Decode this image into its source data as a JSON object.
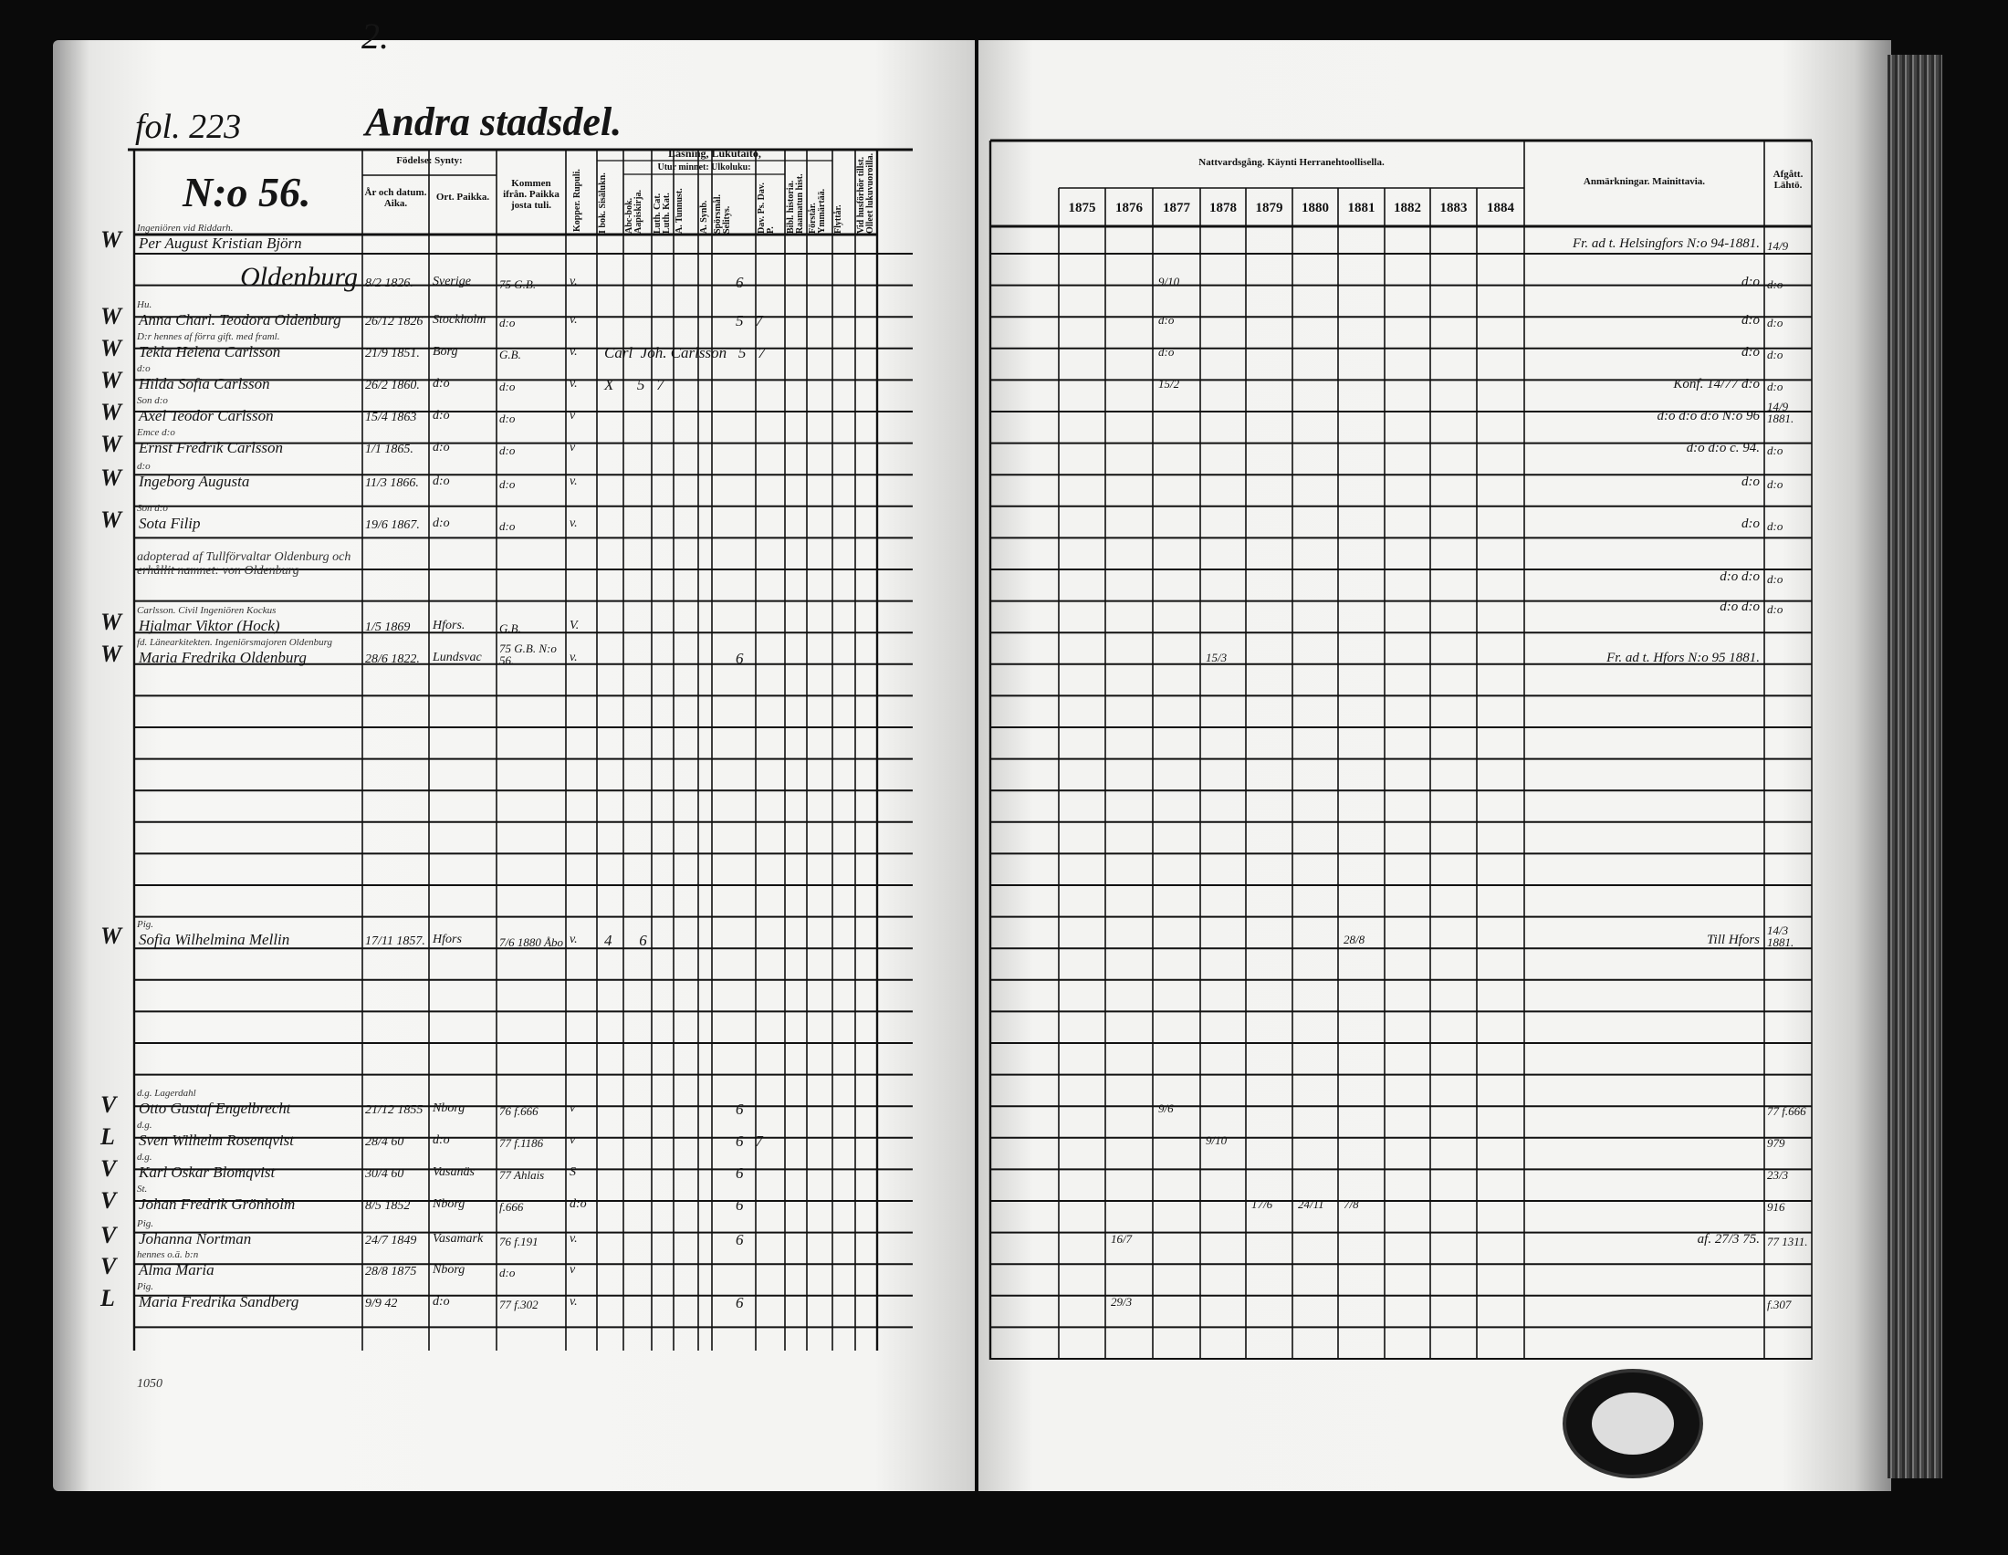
{
  "left_page": {
    "page_number": "2.",
    "folio": "fol. 223",
    "district": "Andra stadsdel.",
    "house_number": "N:o 56.",
    "footer_note": "1050",
    "headers": {
      "birth": "Födelse: Synty:",
      "year_date": "År och datum. Aika.",
      "place": "Ort. Paikka.",
      "came_from": "Kommen ifrån. Paikka josta tuli.",
      "smallpox": "Kopper. Rupuli.",
      "reading": "Läsning, Lukutaito,",
      "by_heart": "Utur minnet: Ulkoluku:",
      "vertical": [
        "I bok. Sisälukn.",
        "Abc-bok. Aapiskirja.",
        "Luth. Cat. Luth. Kat.",
        "A. Tunnust.",
        "A. Synb.",
        "Spörsmål. Selitys.",
        "Dav. Ps. Dav. P.",
        "Bibl. historia. Raamatun hist.",
        "Förstår. Ymmärtää.",
        "Flyttår.",
        "Vid husförhör tillst. Olleet lukuvuoroilla."
      ]
    },
    "entries": [
      {
        "note": "Ingeniören vid Riddarh.",
        "name": "Per August Kristian Björn",
        "date": "",
        "place": "",
        "from": "",
        "mark": "",
        "extra": "",
        "check": "W"
      },
      {
        "note": "",
        "name": "Oldenburg",
        "date": "8/2 1826.",
        "place": "Sverige",
        "from": "75 G.B.",
        "mark": "v.",
        "extra": "6",
        "check": ""
      },
      {
        "note": "Hu.",
        "name": "Anna Charl. Teodora Oldenburg",
        "date": "26/12 1826",
        "place": "Stockholm",
        "from": "d:o",
        "mark": "v.",
        "extra": "5   7",
        "check": "W"
      },
      {
        "note": "D:r hennes af förra gift. med framl.",
        "name": "Tekla Helena Carlsson",
        "date": "21/9 1851.",
        "place": "Borg",
        "from": "G.B.",
        "mark": "v.",
        "extra": "Carl  Joh. Carlsson   5   7",
        "check": "W"
      },
      {
        "note": "d:o",
        "name": "Hilda Sofia Carlsson",
        "date": "26/2 1860.",
        "place": "d:o",
        "from": "d:o",
        "mark": "v.",
        "extra": "X      5   7",
        "check": "W"
      },
      {
        "note": "Son d:o",
        "name": "Axel Teodor Carlsson",
        "date": "15/4 1863",
        "place": "d:o",
        "from": "d:o",
        "mark": "v",
        "extra": "",
        "check": "W"
      },
      {
        "note": "Emce d:o",
        "name": "Ernst Fredrik Carlsson",
        "date": "1/1 1865.",
        "place": "d:o",
        "from": "d:o",
        "mark": "v",
        "extra": "",
        "check": "W"
      },
      {
        "note": "d:o",
        "name": "Ingeborg Augusta",
        "date": "11/3 1866.",
        "place": "d:o",
        "from": "d:o",
        "mark": "v.",
        "extra": "",
        "check": "W"
      },
      {
        "note": "Son d:o",
        "name": "Sota Filip",
        "date": "19/6 1867.",
        "place": "d:o",
        "from": "d:o",
        "mark": "v.",
        "extra": "",
        "check": "W"
      },
      {
        "note": "adopterad af Tullförvaltar Oldenburg och erhållit namnet: von Oldenburg",
        "name": "",
        "date": "",
        "place": "",
        "from": "",
        "mark": "",
        "extra": "",
        "check": ""
      },
      {
        "note": "Carlsson. Civil Ingeniören  Kockus",
        "name": "Hjalmar Viktor (Hock)",
        "date": "1/5 1869",
        "place": "Hfors.",
        "from": "G.B.",
        "mark": "V.",
        "extra": "",
        "check": "W"
      },
      {
        "note": "fd. Länearkitekten. Ingeniörsmajoren Oldenburg",
        "name": "Maria Fredrika Oldenburg",
        "date": "28/6 1822.",
        "place": "Lundsvac",
        "from": "75 G.B. N:o 56.",
        "mark": "v.",
        "extra": "6",
        "check": "W"
      },
      {
        "note": "Pig.",
        "name": "Sofia Wilhelmina Mellin",
        "date": "17/11 1857.",
        "place": "Hfors",
        "from": "7/6 1880 Åbo",
        "mark": "v.",
        "extra": "4       6",
        "check": "W"
      },
      {
        "note": "d.g.   Lagerdahl",
        "name": "Otto Gustaf Engelbrecht",
        "date": "21/12 1855",
        "place": "Nborg",
        "from": "76 f.666",
        "mark": "v",
        "extra": "6",
        "check": "V"
      },
      {
        "note": "d.g.",
        "name": "Sven Wilhelm Rosenqvist",
        "date": "28/4 60",
        "place": "d:o",
        "from": "77 f.1186",
        "mark": "v",
        "extra": "6   7",
        "check": "L"
      },
      {
        "note": "d.g.",
        "name": "Karl Oskar Blomqvist",
        "date": "30/4 60",
        "place": "Vasanäs",
        "from": "77 Ahlais",
        "mark": "S",
        "extra": "6",
        "check": "V"
      },
      {
        "note": "St.",
        "name": "Johan Fredrik Grönholm",
        "date": "8/5 1852",
        "place": "Nborg",
        "from": "f.666",
        "mark": "d:o",
        "extra": "6",
        "check": "V"
      },
      {
        "note": "Pig.",
        "name": "Johanna Nortman",
        "date": "24/7 1849",
        "place": "Vasamark",
        "from": "76 f.191",
        "mark": "v.",
        "extra": "6",
        "check": "V"
      },
      {
        "note": "hennes o.ä. b:n",
        "name": "Alma Maria",
        "date": "28/8 1875",
        "place": "Nborg",
        "from": "d:o",
        "mark": "v",
        "extra": "",
        "check": "V"
      },
      {
        "note": "Pig.",
        "name": "Maria Fredrika Sandberg",
        "date": "9/9 42",
        "place": "d:o",
        "from": "77 f.302",
        "mark": "v.",
        "extra": "6",
        "check": "L"
      }
    ]
  },
  "right_page": {
    "headers": {
      "communion": "Nattvardsgång. Käynti Herranehtoollisella.",
      "years": [
        "1875",
        "1876",
        "1877",
        "1878",
        "1879",
        "1880",
        "1881",
        "1882",
        "1883",
        "1884"
      ],
      "remarks": "Anmärkningar. Mainittavia.",
      "departed": "Afgått. Lähtö."
    },
    "rows": [
      {
        "communion": [],
        "remark": "Fr. ad t. Helsingfors N:o 94-1881.",
        "departed": "14/9"
      },
      {
        "communion": [
          {
            "year": "1877",
            "text": "9/10"
          }
        ],
        "remark": "d:o",
        "departed": "d:o"
      },
      {
        "communion": [
          {
            "year": "1877",
            "text": "d:o"
          }
        ],
        "remark": "d:o",
        "departed": "d:o"
      },
      {
        "communion": [
          {
            "year": "1877",
            "text": "d:o"
          }
        ],
        "remark": "d:o",
        "departed": "d:o"
      },
      {
        "communion": [
          {
            "year": "1877",
            "text": "15/2"
          }
        ],
        "remark": "Konf. 14/77   d:o",
        "departed": "d:o"
      },
      {
        "communion": [],
        "remark": "d:o d:o d:o N:o 96",
        "departed": "14/9 1881."
      },
      {
        "communion": [],
        "remark": "d:o d:o c. 94.",
        "departed": "d:o"
      },
      {
        "communion": [],
        "remark": "d:o",
        "departed": "d:o"
      },
      {
        "communion": [],
        "remark": "d:o",
        "departed": "d:o"
      },
      {
        "communion": [],
        "remark": "d:o  d:o",
        "departed": "d:o"
      },
      {
        "communion": [],
        "remark": "d:o  d:o",
        "departed": "d:o"
      },
      {
        "communion": [
          {
            "year": "1878",
            "text": "15/3"
          }
        ],
        "remark": "Fr. ad t. Hfors N:o 95 1881.",
        "departed": ""
      },
      {
        "communion": [
          {
            "year": "1881",
            "text": "28/8"
          }
        ],
        "remark": "Till Hfors",
        "departed": "14/3 1881."
      },
      {
        "communion": [
          {
            "year": "1877",
            "text": "9/6"
          }
        ],
        "remark": "",
        "departed": "77 f.666"
      },
      {
        "communion": [
          {
            "year": "1878",
            "text": "9/10"
          }
        ],
        "remark": "",
        "departed": "979"
      },
      {
        "communion": [],
        "remark": "",
        "departed": "23/3"
      },
      {
        "communion": [
          {
            "year": "1879",
            "text": "17/6"
          },
          {
            "year": "1880",
            "text": "24/11"
          },
          {
            "year": "1881",
            "text": "7/8"
          }
        ],
        "remark": "",
        "departed": "916"
      },
      {
        "communion": [
          {
            "year": "1876",
            "text": "16/7"
          }
        ],
        "remark": "af. 27/3 75.",
        "departed": "77 1311."
      },
      {
        "communion": [],
        "remark": "",
        "departed": ""
      },
      {
        "communion": [
          {
            "year": "1876",
            "text": "29/3"
          }
        ],
        "remark": "",
        "departed": "f.307"
      }
    ]
  }
}
